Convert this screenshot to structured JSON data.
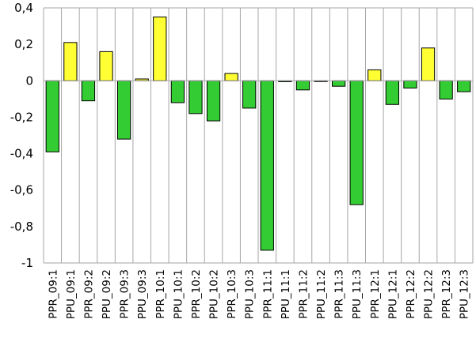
{
  "chart_data": {
    "type": "bar",
    "title": "",
    "xlabel": "",
    "ylabel": "",
    "ylim": [
      -1,
      0.4
    ],
    "yticks": [
      0.4,
      0.2,
      0,
      -0.2,
      -0.4,
      -0.6,
      -0.8,
      -1
    ],
    "ytick_labels": [
      "0,4",
      "0,2",
      "0",
      "-0,2",
      "-0,4",
      "-0,6",
      "-0,8",
      "-1"
    ],
    "grid": "vertical",
    "legend": "none",
    "colors": {
      "positive": "#ffff33",
      "negative": "#33cc33",
      "grid": "#a6a6a6",
      "edge": "#000000"
    },
    "categories": [
      "PPR_09:1",
      "PPU_09:1",
      "PPR_09:2",
      "PPU_09:2",
      "PPR_09:3",
      "PPU_09:3",
      "PPR_10:1",
      "PPU_10:1",
      "PPR_10:2",
      "PPU_10:2",
      "PPR_10:3",
      "PPU_10:3",
      "PPR_11:1",
      "PPU_11:1",
      "PPR_11:2",
      "PPU_11:2",
      "PPR_11:3",
      "PPU_11:3",
      "PPR_12:1",
      "PPU_12:1",
      "PPR_12:2",
      "PPU_12:2",
      "PPR_12:3",
      "PPU_12:3"
    ],
    "values": [
      -0.39,
      0.21,
      -0.11,
      0.16,
      -0.32,
      0.01,
      0.35,
      -0.12,
      -0.18,
      -0.22,
      0.04,
      -0.15,
      -0.93,
      -0.005,
      -0.05,
      -0.003,
      -0.03,
      -0.68,
      0.06,
      -0.13,
      -0.04,
      0.18,
      -0.1,
      -0.06
    ]
  }
}
